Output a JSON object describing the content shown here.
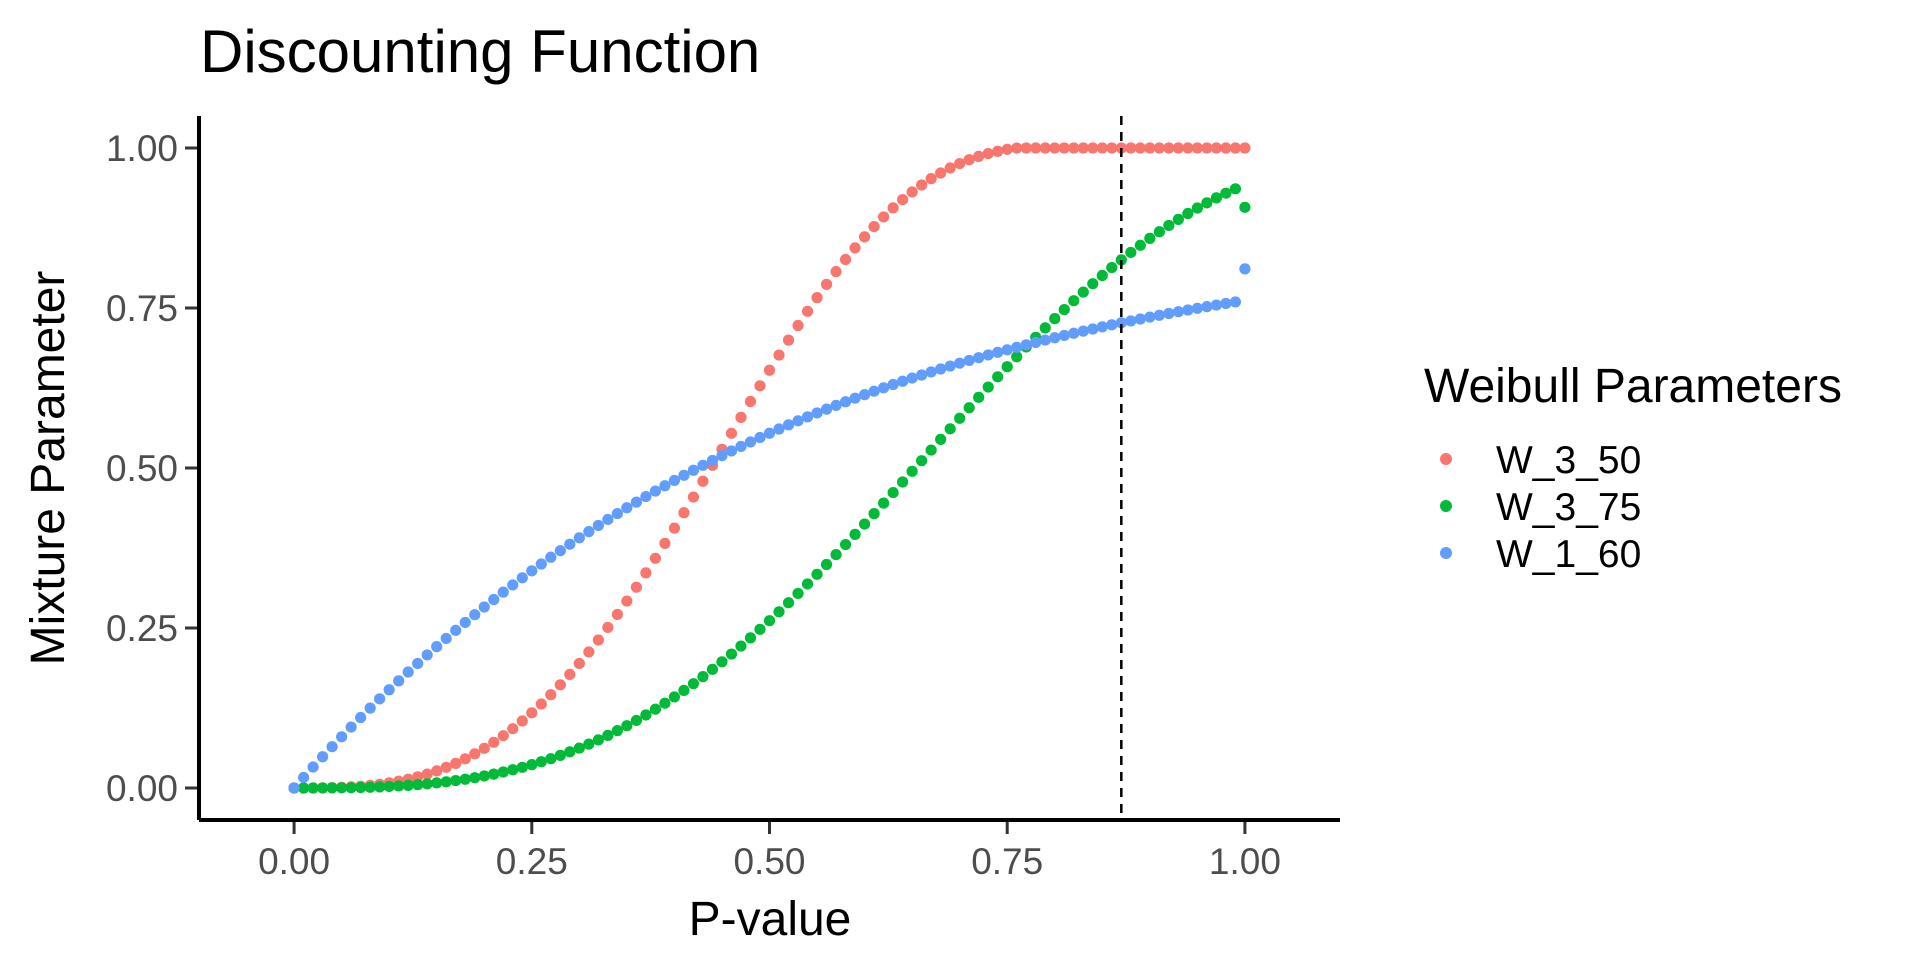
{
  "chart_data": {
    "type": "scatter",
    "title": "Discounting Function",
    "xlabel": "P-value",
    "ylabel": "Mixture Parameter",
    "xlim": [
      -0.1,
      1.1
    ],
    "ylim": [
      -0.05,
      1.05
    ],
    "xticks": [
      "0.00",
      "0.25",
      "0.50",
      "0.75",
      "1.00"
    ],
    "yticks": [
      "0.00",
      "0.25",
      "0.50",
      "0.75",
      "1.00"
    ],
    "grid": false,
    "legend": {
      "title": "Weibull Parameters",
      "placement": "right"
    },
    "x_step": 0.01,
    "series": [
      {
        "name": "W_3_50",
        "color": "#F8766D",
        "values": [
          0,
          0.0,
          0.0001,
          0.0002,
          0.0005,
          0.001,
          0.0017,
          0.0027,
          0.0041,
          0.0058,
          0.008,
          0.0106,
          0.0137,
          0.0174,
          0.0217,
          0.0267,
          0.0323,
          0.0385,
          0.0456,
          0.0534,
          0.062,
          0.0714,
          0.0817,
          0.0927,
          0.1047,
          0.1175,
          0.1312,
          0.1458,
          0.1612,
          0.1775,
          0.1946,
          0.2126,
          0.2313,
          0.2509,
          0.2712,
          0.2921,
          0.3138,
          0.3361,
          0.3589,
          0.3822,
          0.406,
          0.4301,
          0.4546,
          0.4793,
          0.5042,
          0.5292,
          0.5542,
          0.5791,
          0.6039,
          0.6284,
          0.6527,
          0.6765,
          0.6998,
          0.7226,
          0.7448,
          0.7662,
          0.7869,
          0.8068,
          0.8258,
          0.8439,
          0.8611,
          0.8772,
          0.8923,
          0.9064,
          0.9194,
          0.9313,
          0.9422,
          0.9521,
          0.9609,
          0.9688,
          0.9757,
          0.9817,
          0.9869,
          0.9913,
          0.9949,
          0.9979,
          0.9999,
          1.0,
          1.0,
          1.0,
          1.0,
          1.0,
          1.0,
          1.0,
          1.0,
          1.0,
          1.0,
          1.0,
          1.0,
          1.0,
          1.0,
          1.0,
          1.0,
          1.0,
          1.0,
          1.0,
          1.0,
          1.0,
          1.0,
          1.0,
          1.0
        ]
      },
      {
        "name": "W_3_75",
        "color": "#00BA38",
        "values": [
          0,
          0.0,
          0.0,
          0.0001,
          0.0002,
          0.0003,
          0.0005,
          0.0008,
          0.0012,
          0.0017,
          0.0024,
          0.0032,
          0.0041,
          0.0052,
          0.0065,
          0.008,
          0.0097,
          0.0116,
          0.0137,
          0.0161,
          0.0188,
          0.0217,
          0.025,
          0.0285,
          0.0323,
          0.0365,
          0.041,
          0.0458,
          0.051,
          0.0565,
          0.0624,
          0.0686,
          0.0752,
          0.0822,
          0.0896,
          0.0974,
          0.1056,
          0.1141,
          0.1231,
          0.1325,
          0.1423,
          0.1525,
          0.163,
          0.174,
          0.1854,
          0.1972,
          0.2093,
          0.2218,
          0.2346,
          0.2479,
          0.2614,
          0.2753,
          0.2895,
          0.304,
          0.3188,
          0.3339,
          0.3492,
          0.3647,
          0.3804,
          0.3963,
          0.4124,
          0.4287,
          0.4451,
          0.4616,
          0.4781,
          0.4948,
          0.5114,
          0.528,
          0.5447,
          0.5612,
          0.5777,
          0.5941,
          0.6104,
          0.6265,
          0.6425,
          0.6582,
          0.6738,
          0.6891,
          0.7041,
          0.7189,
          0.7334,
          0.7475,
          0.7614,
          0.7749,
          0.788,
          0.8008,
          0.8132,
          0.8252,
          0.8368,
          0.848,
          0.8588,
          0.8691,
          0.879,
          0.8885,
          0.8976,
          0.9062,
          0.9143,
          0.9221,
          0.9294,
          0.9362,
          0.9073
        ]
      },
      {
        "name": "W_1_60",
        "color": "#619CFF",
        "values": [
          0,
          0.0165,
          0.0328,
          0.0488,
          0.0645,
          0.08,
          0.0952,
          0.1101,
          0.1248,
          0.1393,
          0.1535,
          0.1674,
          0.1812,
          0.1946,
          0.2079,
          0.2209,
          0.2337,
          0.2463,
          0.2587,
          0.2708,
          0.2828,
          0.2945,
          0.306,
          0.3173,
          0.3284,
          0.3393,
          0.35,
          0.3605,
          0.3708,
          0.3809,
          0.3909,
          0.4006,
          0.4102,
          0.4196,
          0.4288,
          0.4379,
          0.4467,
          0.4554,
          0.464,
          0.4723,
          0.4806,
          0.4886,
          0.4965,
          0.5042,
          0.5118,
          0.5193,
          0.5266,
          0.5337,
          0.5407,
          0.5476,
          0.5543,
          0.5609,
          0.5674,
          0.5737,
          0.5799,
          0.586,
          0.592,
          0.5978,
          0.6035,
          0.6091,
          0.6146,
          0.62,
          0.6253,
          0.6305,
          0.6355,
          0.6405,
          0.6453,
          0.6501,
          0.6547,
          0.6593,
          0.6638,
          0.6681,
          0.6724,
          0.6766,
          0.6807,
          0.6847,
          0.6886,
          0.6925,
          0.6962,
          0.6999,
          0.7035,
          0.7071,
          0.7105,
          0.7139,
          0.7172,
          0.7205,
          0.7237,
          0.7268,
          0.7298,
          0.7328,
          0.7358,
          0.7386,
          0.7414,
          0.7442,
          0.7469,
          0.7495,
          0.7521,
          0.7546,
          0.7571,
          0.7595,
          0.8111
        ]
      }
    ],
    "vline": {
      "x": 0.87,
      "style": "dashed"
    }
  }
}
